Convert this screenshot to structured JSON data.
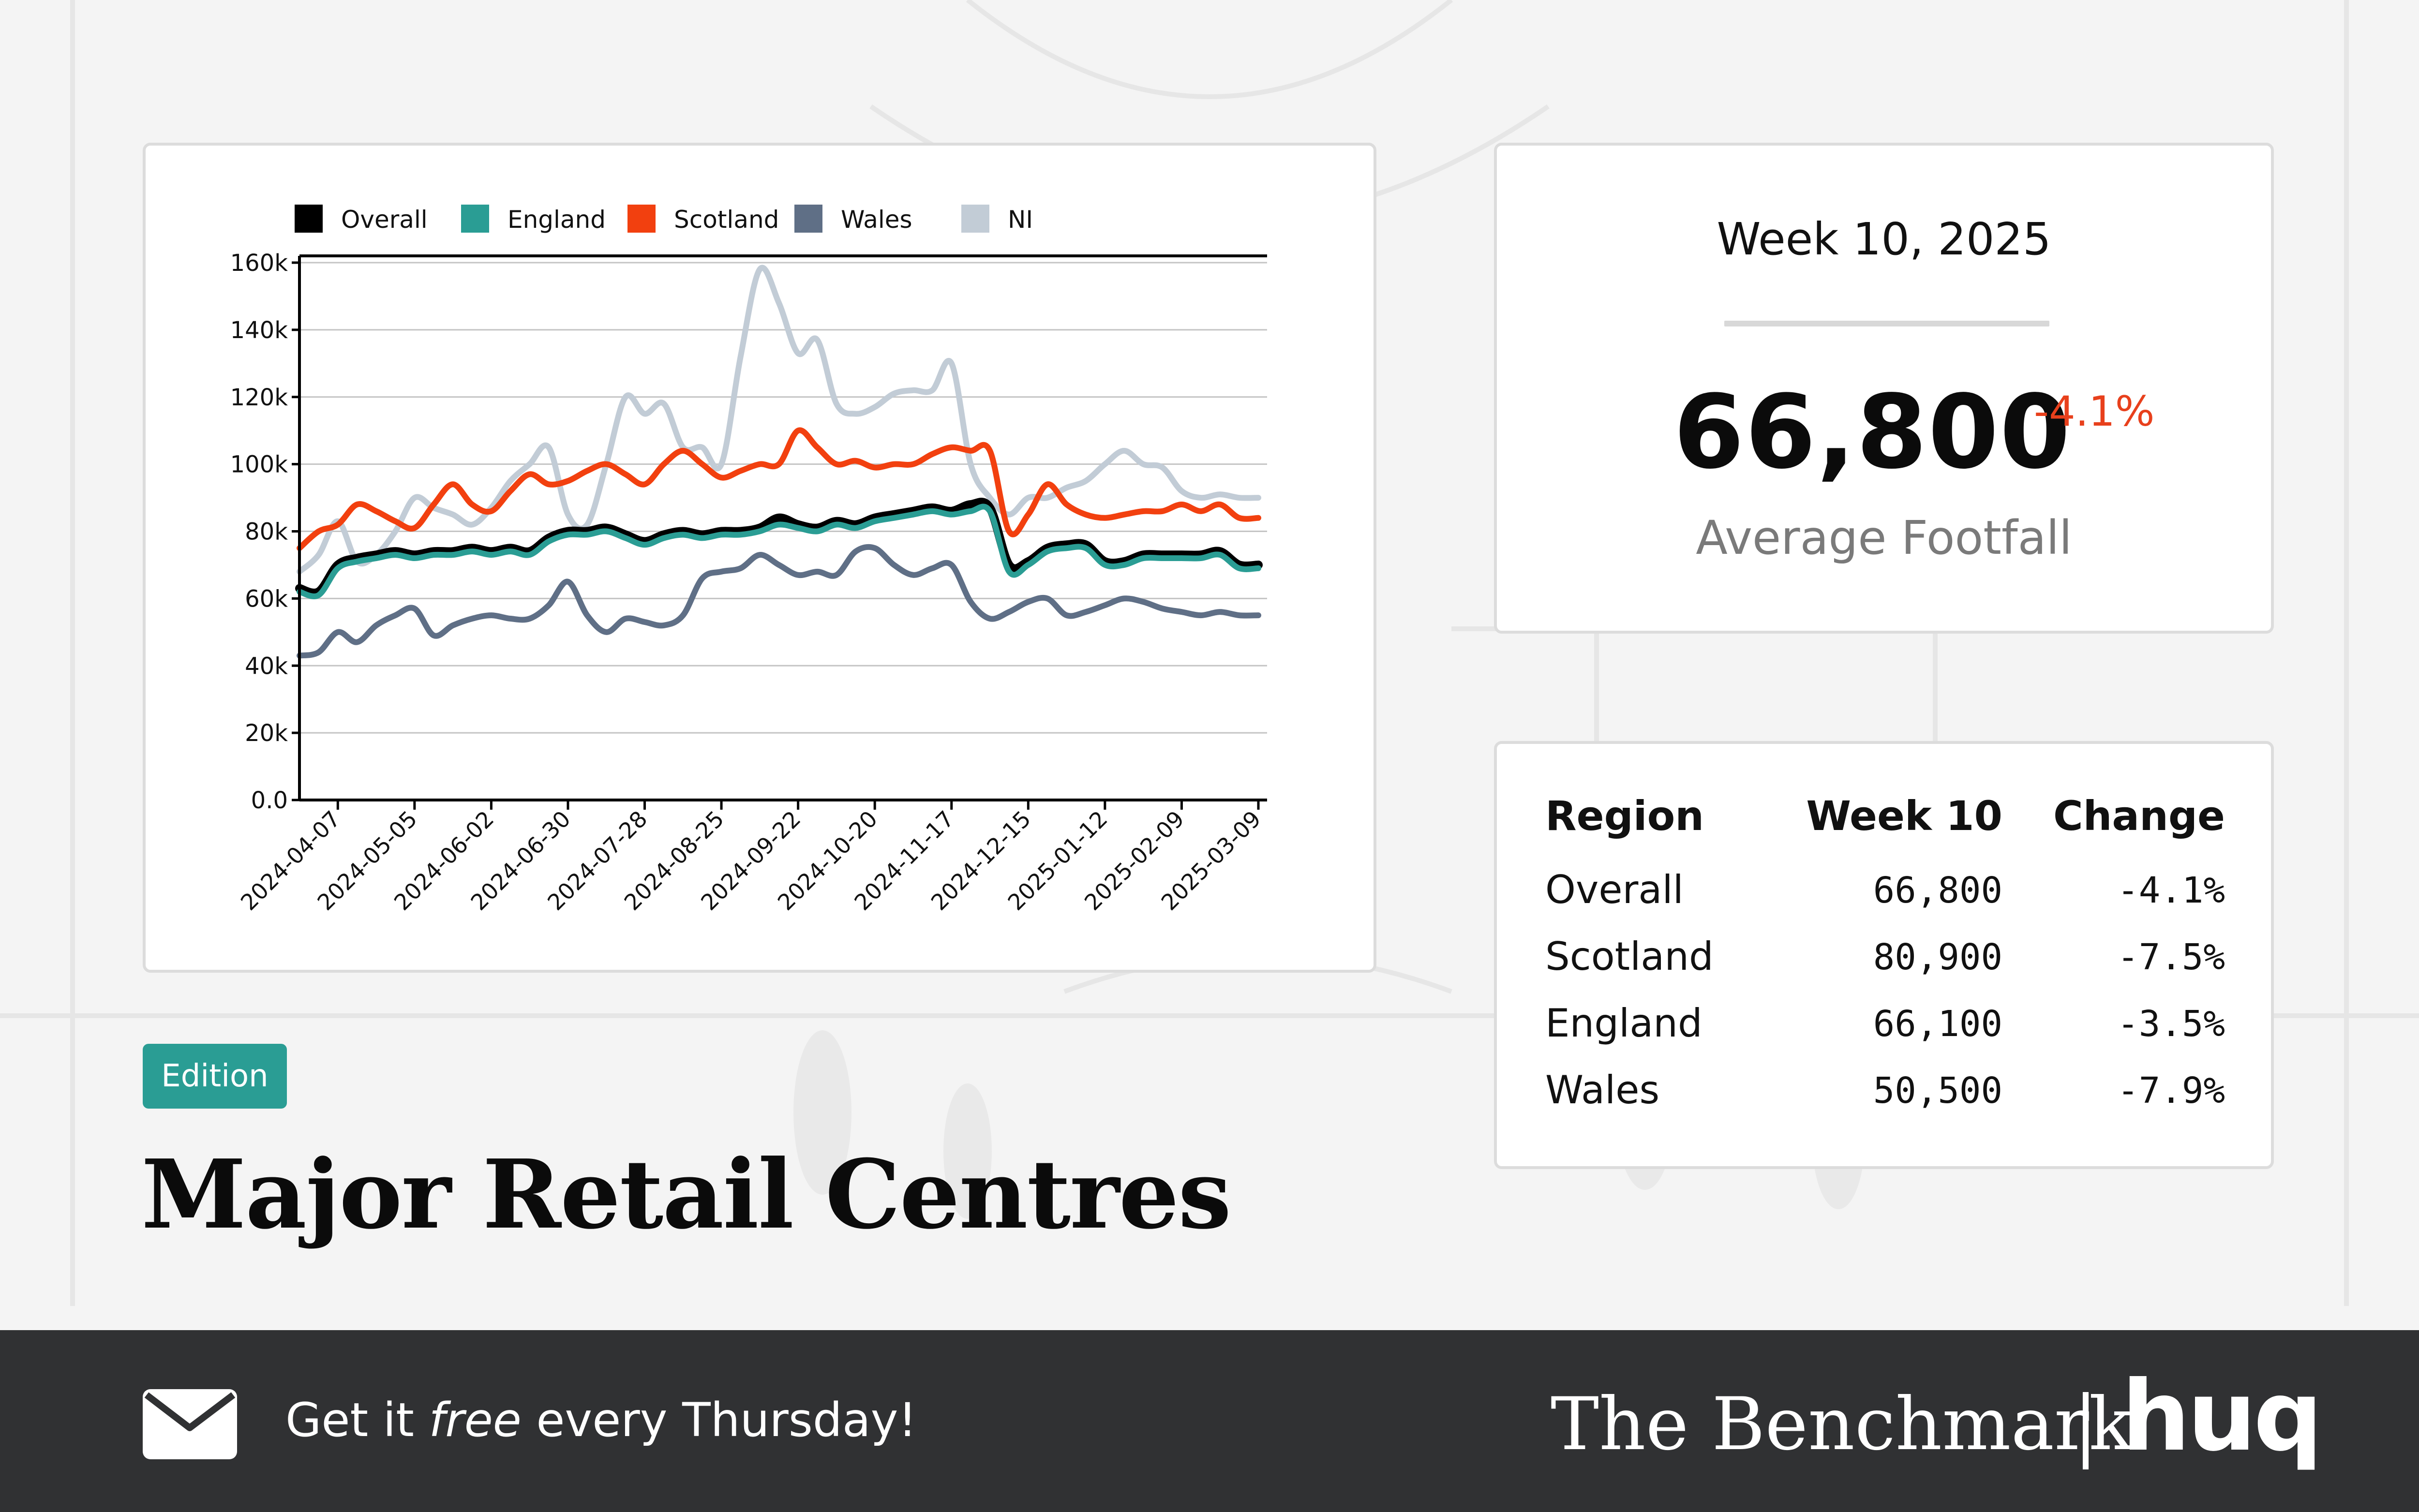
{
  "chart_data": {
    "type": "line",
    "x": [
      "2024-03-24",
      "2024-03-31",
      "2024-04-07",
      "2024-04-14",
      "2024-04-21",
      "2024-04-28",
      "2024-05-05",
      "2024-05-12",
      "2024-05-19",
      "2024-05-26",
      "2024-06-02",
      "2024-06-09",
      "2024-06-16",
      "2024-06-23",
      "2024-06-30",
      "2024-07-07",
      "2024-07-14",
      "2024-07-21",
      "2024-07-28",
      "2024-08-04",
      "2024-08-11",
      "2024-08-18",
      "2024-08-25",
      "2024-09-01",
      "2024-09-08",
      "2024-09-15",
      "2024-09-22",
      "2024-09-29",
      "2024-10-06",
      "2024-10-13",
      "2024-10-20",
      "2024-10-27",
      "2024-11-03",
      "2024-11-10",
      "2024-11-17",
      "2024-11-24",
      "2024-12-01",
      "2024-12-08",
      "2024-12-15",
      "2024-12-22",
      "2024-12-29",
      "2025-01-05",
      "2025-01-12",
      "2025-01-19",
      "2025-01-26",
      "2025-02-02",
      "2025-02-09",
      "2025-02-16",
      "2025-02-23",
      "2025-03-02",
      "2025-03-09"
    ],
    "series": [
      {
        "name": "Overall",
        "color": "#000000",
        "values": [
          63000,
          62000,
          70000,
          72000,
          73000,
          74000,
          73000,
          74000,
          74000,
          75000,
          74000,
          75000,
          74000,
          78000,
          80000,
          80000,
          81000,
          79000,
          77000,
          79000,
          80000,
          79000,
          80000,
          80000,
          81000,
          84000,
          82000,
          81000,
          83000,
          82000,
          84000,
          85000,
          86000,
          87000,
          86000,
          88000,
          87000,
          70000,
          71000,
          75000,
          76000,
          76000,
          71000,
          71000,
          73000,
          73000,
          73000,
          73000,
          74000,
          70000,
          70000
        ]
      },
      {
        "name": "England",
        "color": "#2a9d94",
        "values": [
          62000,
          61000,
          69000,
          71000,
          72000,
          73000,
          72000,
          73000,
          73000,
          74000,
          73000,
          74000,
          73000,
          77000,
          79000,
          79000,
          80000,
          78000,
          76000,
          78000,
          79000,
          78000,
          79000,
          79000,
          80000,
          82000,
          81000,
          80000,
          82000,
          81000,
          83000,
          84000,
          85000,
          86000,
          85000,
          86000,
          86000,
          68000,
          70000,
          74000,
          75000,
          75000,
          70000,
          70000,
          72000,
          72000,
          72000,
          72000,
          73000,
          69000,
          69000
        ]
      },
      {
        "name": "Scotland",
        "color": "#f2400f",
        "values": [
          75000,
          80000,
          82000,
          88000,
          86000,
          83000,
          81000,
          88000,
          94000,
          88000,
          86000,
          92000,
          97000,
          94000,
          95000,
          98000,
          100000,
          97000,
          94000,
          100000,
          104000,
          100000,
          96000,
          98000,
          100000,
          100000,
          110000,
          105000,
          100000,
          101000,
          99000,
          100000,
          100000,
          103000,
          105000,
          104000,
          104000,
          80000,
          85000,
          94000,
          88000,
          85000,
          84000,
          85000,
          86000,
          86000,
          88000,
          86000,
          88000,
          84000,
          84000
        ]
      },
      {
        "name": "Wales",
        "color": "#5f6f86",
        "values": [
          43000,
          44000,
          50000,
          47000,
          52000,
          55000,
          57000,
          49000,
          52000,
          54000,
          55000,
          54000,
          54000,
          58000,
          65000,
          55000,
          50000,
          54000,
          53000,
          52000,
          55000,
          66000,
          68000,
          69000,
          73000,
          70000,
          67000,
          68000,
          67000,
          74000,
          75000,
          70000,
          67000,
          69000,
          70000,
          59000,
          54000,
          56000,
          59000,
          60000,
          55000,
          56000,
          58000,
          60000,
          59000,
          57000,
          56000,
          55000,
          56000,
          55000,
          55000
        ]
      },
      {
        "name": "NI",
        "color": "#c2ccd6",
        "values": [
          68000,
          73000,
          83000,
          71000,
          73000,
          80000,
          90000,
          87000,
          85000,
          82000,
          87000,
          95000,
          100000,
          105000,
          85000,
          82000,
          100000,
          120000,
          115000,
          118000,
          105000,
          105000,
          100000,
          132000,
          158000,
          148000,
          133000,
          137000,
          118000,
          115000,
          117000,
          121000,
          122000,
          122000,
          130000,
          100000,
          90000,
          85000,
          90000,
          90000,
          93000,
          95000,
          100000,
          104000,
          100000,
          99000,
          92000,
          90000,
          91000,
          90000,
          90000
        ]
      }
    ],
    "xtick_labels": [
      "2024-04-07",
      "2024-05-05",
      "2024-06-02",
      "2024-06-30",
      "2024-07-28",
      "2024-08-25",
      "2024-09-22",
      "2024-10-20",
      "2024-11-17",
      "2024-12-15",
      "2025-01-12",
      "2025-02-09",
      "2025-03-09"
    ],
    "ytick_values": [
      0,
      20000,
      40000,
      60000,
      80000,
      100000,
      120000,
      140000,
      160000
    ],
    "ytick_labels": [
      "0.0",
      "20k",
      "40k",
      "60k",
      "80k",
      "100k",
      "120k",
      "140k",
      "160k"
    ],
    "ylim": [
      0,
      160000
    ],
    "grid": "horizontal",
    "legend": "top-left",
    "title": "",
    "xlabel": "",
    "ylabel": ""
  },
  "kpi": {
    "week": "Week 10, 2025",
    "value": "66,800",
    "change": "-4.1%",
    "label": "Average Footfall"
  },
  "table": {
    "headers": [
      "Region",
      "Week 10",
      "Change"
    ],
    "rows": [
      {
        "region": "Overall",
        "week": "66,800",
        "change": "-4.1%"
      },
      {
        "region": "Scotland",
        "week": "80,900",
        "change": "-7.5%"
      },
      {
        "region": "England",
        "week": "66,100",
        "change": "-3.5%"
      },
      {
        "region": "Wales",
        "week": "50,500",
        "change": "-7.9%"
      }
    ]
  },
  "badge": "Edition",
  "title": "Major Retail Centres",
  "footer": {
    "tagline_pre": "Get it ",
    "tagline_em": "free",
    "tagline_post": " every Thursday!",
    "brand": "The Benchmark",
    "logo": "huq",
    "icon": "mail-icon"
  }
}
